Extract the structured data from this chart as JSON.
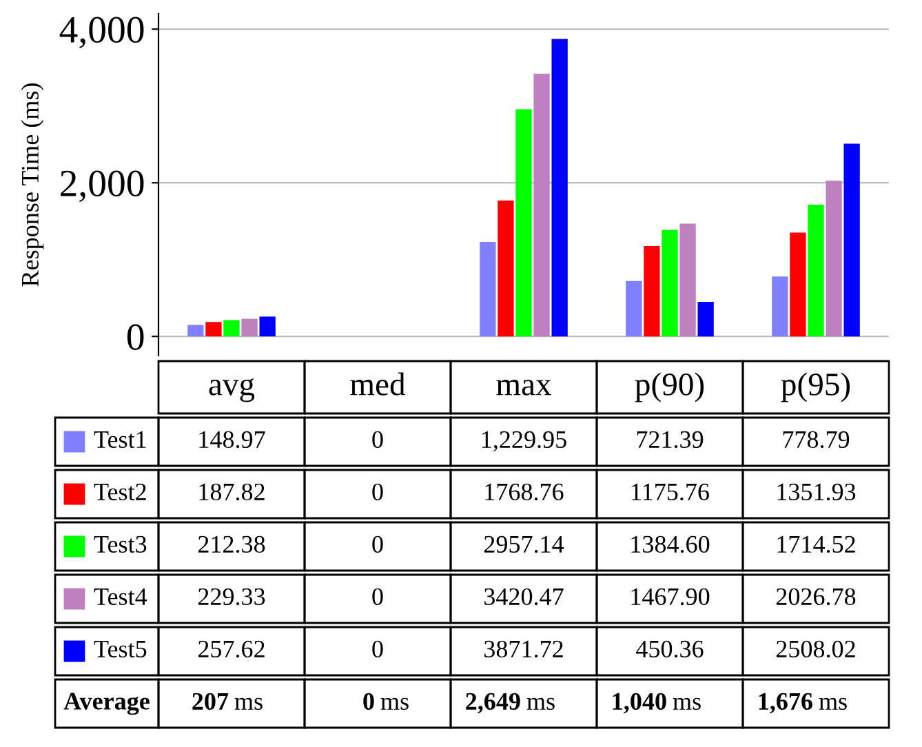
{
  "chart_data": {
    "type": "bar",
    "ylabel": "Response Time (ms)",
    "categories": [
      "avg",
      "med",
      "max",
      "p(90)",
      "p(95)"
    ],
    "series": [
      {
        "name": "Test1",
        "color": "#8080ff",
        "values": [
          148.97,
          0,
          1229.95,
          721.39,
          778.79
        ],
        "value_labels": [
          "148.97",
          "0",
          "1,229.95",
          "721.39",
          "778.79"
        ]
      },
      {
        "name": "Test2",
        "color": "#ff0000",
        "values": [
          187.82,
          0,
          1768.76,
          1175.76,
          1351.93
        ],
        "value_labels": [
          "187.82",
          "0",
          "1768.76",
          "1175.76",
          "1351.93"
        ]
      },
      {
        "name": "Test3",
        "color": "#00ff00",
        "values": [
          212.38,
          0,
          2957.14,
          1384.6,
          1714.52
        ],
        "value_labels": [
          "212.38",
          "0",
          "2957.14",
          "1384.60",
          "1714.52"
        ]
      },
      {
        "name": "Test4",
        "color": "#bf80bf",
        "values": [
          229.33,
          0,
          3420.47,
          1467.9,
          2026.78
        ],
        "value_labels": [
          "229.33",
          "0",
          "3420.47",
          "1467.90",
          "2026.78"
        ]
      },
      {
        "name": "Test5",
        "color": "#0000ff",
        "values": [
          257.62,
          0,
          3871.72,
          450.36,
          2508.02
        ],
        "value_labels": [
          "257.62",
          "0",
          "3871.72",
          "450.36",
          "2508.02"
        ]
      }
    ],
    "ylim": [
      -250,
      4200
    ],
    "yticks": [
      0,
      {
        "value": 2000,
        "label": "2,000"
      },
      {
        "value": 4000,
        "label": "4,000"
      }
    ],
    "grid": "y",
    "legend": "left",
    "annotations": [
      "Average",
      "207 ms",
      "0 ms",
      "2,649 ms",
      "1,040 ms",
      "1,676 ms"
    ]
  }
}
